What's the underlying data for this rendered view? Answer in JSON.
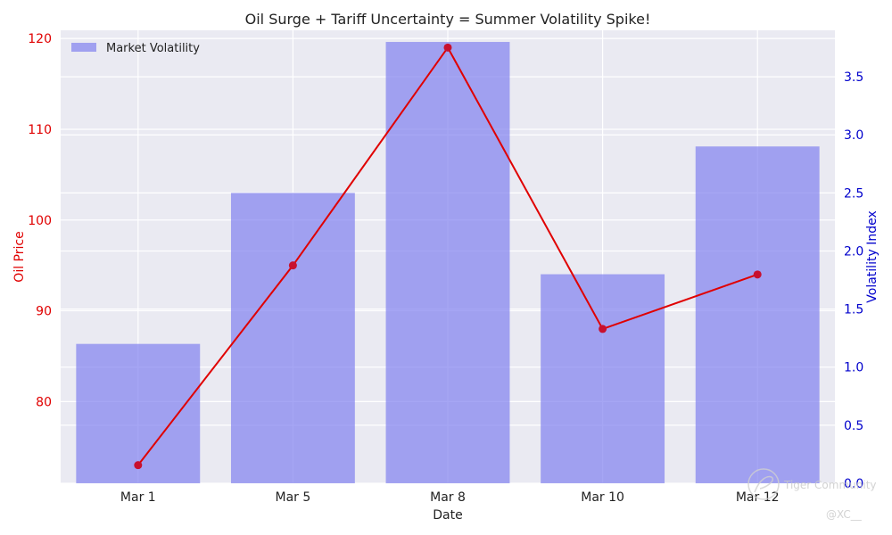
{
  "chart_data": {
    "type": "bar",
    "title": "Oil Surge + Tariff Uncertainty = Summer Volatility Spike!",
    "xlabel": "Date",
    "ylabel_left": "Oil Price",
    "ylabel_right": "Volatility Index",
    "categories": [
      "Mar 1",
      "Mar 5",
      "Mar 8",
      "Mar 10",
      "Mar 12"
    ],
    "series": [
      {
        "name": "Market Volatility",
        "kind": "bar",
        "axis": "right",
        "values": [
          1.2,
          2.5,
          3.8,
          1.8,
          2.9
        ],
        "color": "#8080f0"
      },
      {
        "kind": "line",
        "axis": "left",
        "values": [
          73,
          95,
          119,
          88,
          94
        ],
        "color": "#e00000"
      }
    ],
    "ylim_left": [
      71,
      120.9
    ],
    "ylim_right": [
      0,
      3.9
    ],
    "yticks_left": [
      "80",
      "90",
      "100",
      "110",
      "120"
    ],
    "yticks_right": [
      "0.0",
      "0.5",
      "1.0",
      "1.5",
      "2.0",
      "2.5",
      "3.0",
      "3.5"
    ],
    "grid": true,
    "legend_position": "top-left",
    "colors": {
      "background": "#eaeaf2",
      "left_axis": "#e00000",
      "right_axis": "#0000cc",
      "bar": "#8080f0",
      "line": "#e00000"
    }
  },
  "watermark": {
    "text": "Tiger Community",
    "handle": "@XC__"
  }
}
